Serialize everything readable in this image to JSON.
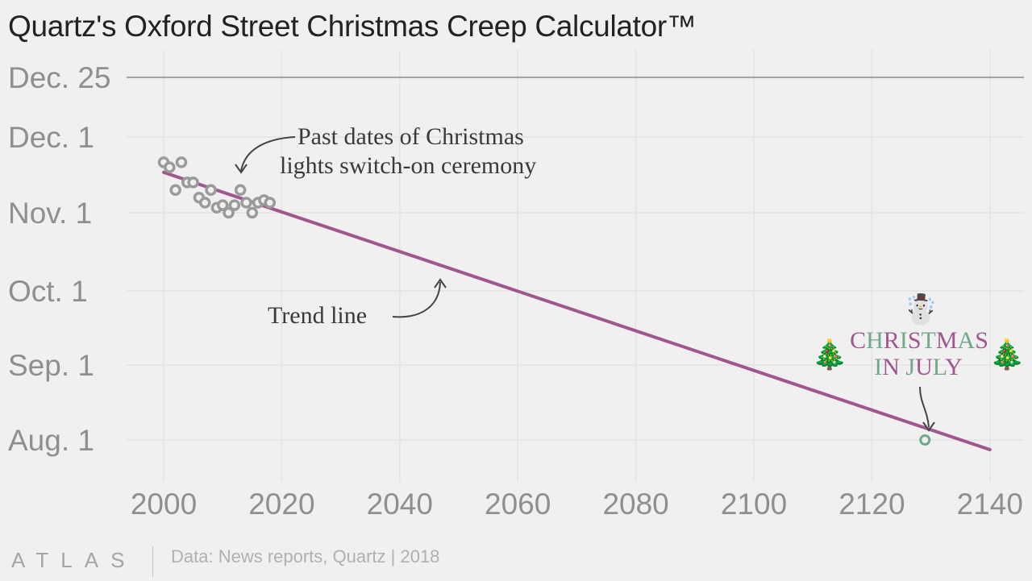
{
  "title": "Quartz's Oxford Street Christmas Creep Calculator™",
  "source": "Data: News reports, Quartz | 2018",
  "brand": "ATLAS",
  "chart_data": {
    "type": "scatter",
    "title": "Quartz's Oxford Street Christmas Creep Calculator™",
    "xlabel": "",
    "ylabel": "",
    "xlim": [
      1990,
      2145
    ],
    "ylim": [
      "2000-07-20",
      "2000-12-30"
    ],
    "x_ticks": [
      "2000",
      "2020",
      "2040",
      "2060",
      "2080",
      "2100",
      "2120",
      "2140"
    ],
    "y_ticks": [
      {
        "label": "Aug. 1",
        "date": "2000-08-01"
      },
      {
        "label": "Sep. 1",
        "date": "2000-09-01"
      },
      {
        "label": "Oct. 1",
        "date": "2000-10-01"
      },
      {
        "label": "Nov. 1",
        "date": "2000-11-01"
      },
      {
        "label": "Dec. 1",
        "date": "2000-12-01"
      },
      {
        "label": "Dec. 25",
        "date": "2000-12-25"
      }
    ],
    "reference_line": {
      "label": "Dec. 25",
      "date": "2000-12-25",
      "color": "#a3a3a3"
    },
    "grid": true,
    "series": [
      {
        "name": "Past dates of Christmas lights switch-on ceremony",
        "kind": "points",
        "color": "#9a9a9a",
        "points": [
          {
            "x": 2000,
            "y": "2000-11-21"
          },
          {
            "x": 2001,
            "y": "2000-11-19"
          },
          {
            "x": 2002,
            "y": "2000-11-10"
          },
          {
            "x": 2003,
            "y": "2000-11-21"
          },
          {
            "x": 2004,
            "y": "2000-11-13"
          },
          {
            "x": 2005,
            "y": "2000-11-13"
          },
          {
            "x": 2006,
            "y": "2000-11-07"
          },
          {
            "x": 2007,
            "y": "2000-11-05"
          },
          {
            "x": 2008,
            "y": "2000-11-10"
          },
          {
            "x": 2009,
            "y": "2000-11-03"
          },
          {
            "x": 2010,
            "y": "2000-11-04"
          },
          {
            "x": 2011,
            "y": "2000-11-01"
          },
          {
            "x": 2012,
            "y": "2000-11-04"
          },
          {
            "x": 2013,
            "y": "2000-11-10"
          },
          {
            "x": 2014,
            "y": "2000-11-05"
          },
          {
            "x": 2015,
            "y": "2000-11-01"
          },
          {
            "x": 2016,
            "y": "2000-11-05"
          },
          {
            "x": 2017,
            "y": "2000-11-06"
          },
          {
            "x": 2018,
            "y": "2000-11-05"
          }
        ]
      },
      {
        "name": "Trend line",
        "kind": "line",
        "color": "#a0578e",
        "points": [
          {
            "x": 2000,
            "y": "2000-11-17"
          },
          {
            "x": 2140,
            "y": "2000-07-28"
          }
        ]
      },
      {
        "name": "Christmas in July",
        "kind": "highlight-point",
        "color": "#6fa88a",
        "points": [
          {
            "x": 2129,
            "y": "2000-08-01"
          }
        ]
      }
    ],
    "annotations": [
      {
        "id": "past-dates",
        "lines": [
          "Past dates of Christmas",
          "lights switch-on ceremony"
        ]
      },
      {
        "id": "trend",
        "lines": [
          "Trend line"
        ]
      },
      {
        "id": "christmas-in-july",
        "lines": [
          "CHRISTMAS",
          "IN JULY"
        ],
        "emoji": [
          "☃️",
          "🎄",
          "🎄"
        ]
      }
    ],
    "colors": {
      "purple": "#a0578e",
      "green": "#6fa88a",
      "grey": "#9a9a9a"
    }
  }
}
